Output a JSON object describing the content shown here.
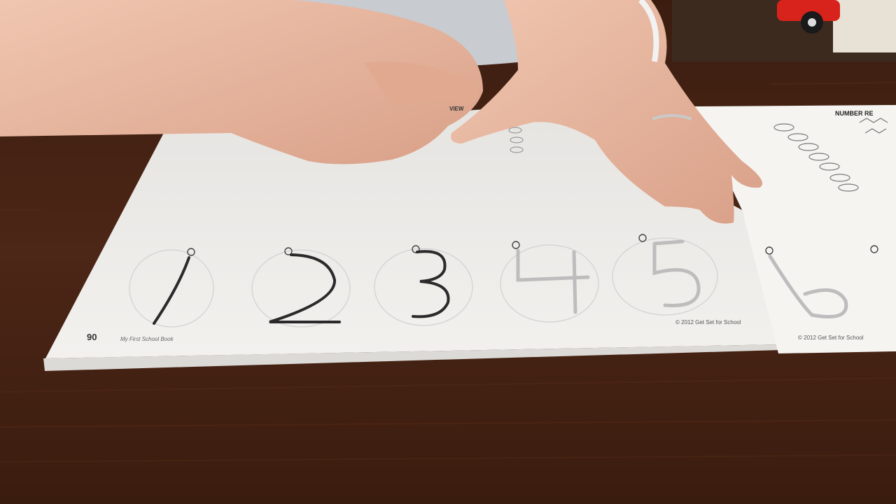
{
  "scene": {
    "description_labels": {
      "left_page": "workbook-left-page",
      "right_page": "workbook-right-page"
    },
    "colors": {
      "table": "#4a2616",
      "paper": "#f1efec",
      "skin": "#e6b49c",
      "shirt": "#c9ccd0",
      "pencil_stroke": "#2a2a2a",
      "guide_stroke": "#b8b8b8"
    }
  },
  "workbook": {
    "left_page": {
      "page_number": "90",
      "book_title": "My First School Book",
      "copyright": "© 2012 Get Set for School",
      "heading_fragment": "VIEW",
      "digits": [
        "1",
        "2",
        "3",
        "4",
        "5"
      ],
      "traced_digits": [
        "1",
        "2",
        "3"
      ],
      "guide_only_digits": [
        "4",
        "5"
      ]
    },
    "right_page": {
      "heading_fragment": "NUMBER RE",
      "copyright": "© 2012 Get Set for School",
      "digits": [
        "6"
      ]
    }
  }
}
